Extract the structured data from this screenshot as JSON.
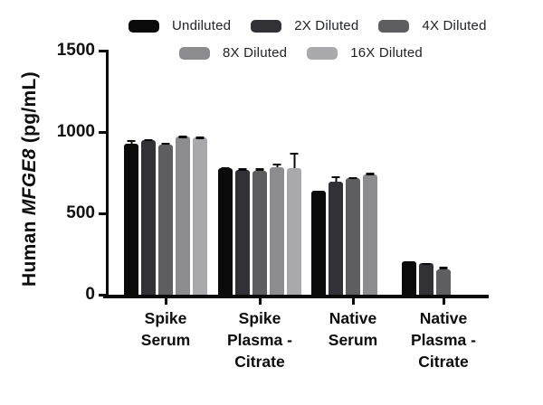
{
  "chart_data": {
    "type": "bar",
    "title": "",
    "ylabel": "Human MFGE8 (pg/mL)",
    "ylabel_parts": {
      "prefix": "Human ",
      "gene": "MFGE8",
      "suffix": " (pg/mL)"
    },
    "xlabel": "",
    "ylim": [
      0,
      1500
    ],
    "yticks": [
      "0",
      "500",
      "1000",
      "1500"
    ],
    "ytick_values": [
      0,
      500,
      1000,
      1500
    ],
    "grid": false,
    "legend_position": "top",
    "legend_row1_count": 3,
    "categories": [
      "Spike Serum",
      "Spike Plasma - Citrate",
      "Native Serum",
      "Native Plasma - Citrate"
    ],
    "category_lines": [
      [
        "Spike",
        "Serum"
      ],
      [
        "Spike",
        "Plasma -",
        "Citrate"
      ],
      [
        "Native",
        "Serum"
      ],
      [
        "Native",
        "Plasma -",
        "Citrate"
      ]
    ],
    "series": [
      {
        "name": "Undiluted",
        "color": "#0a0a0a",
        "values": [
          930,
          778,
          640,
          205
        ],
        "errors": [
          22,
          8,
          0,
          0
        ]
      },
      {
        "name": "2X Diluted",
        "color": "#323236",
        "values": [
          948,
          768,
          697,
          192
        ],
        "errors": [
          8,
          8,
          33,
          4
        ]
      },
      {
        "name": "4X Diluted",
        "color": "#5e5e60",
        "values": [
          920,
          762,
          714,
          158
        ],
        "errors": [
          16,
          14,
          11,
          12
        ]
      },
      {
        "name": "8X Diluted",
        "color": "#8c8c8e",
        "values": [
          972,
          782,
          740,
          null
        ],
        "errors": [
          5,
          26,
          9,
          null
        ]
      },
      {
        "name": "16X Diluted",
        "color": "#a9a9ab",
        "values": [
          968,
          778,
          null,
          null
        ],
        "errors": [
          4,
          95,
          null,
          null
        ]
      }
    ]
  }
}
